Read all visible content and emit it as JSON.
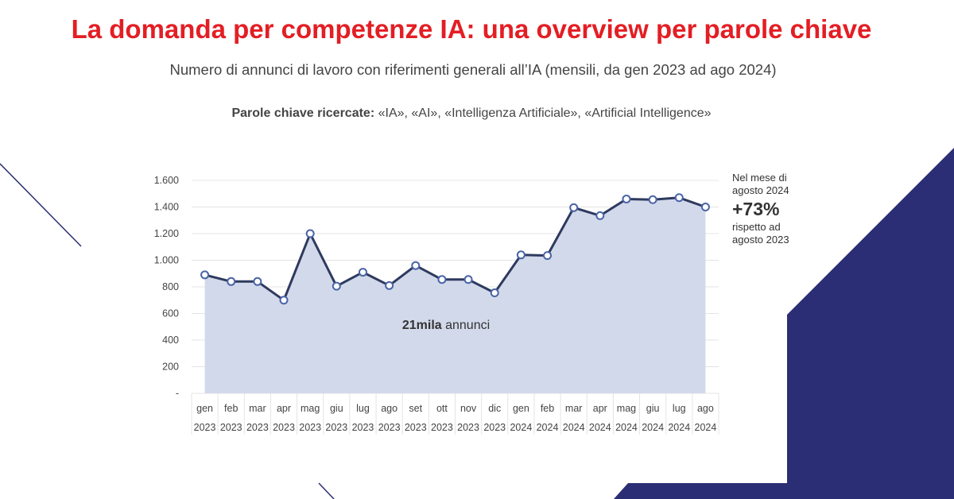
{
  "header": {
    "title": "La domanda per competenze IA: una overview per parole chiave",
    "subtitle": "Numero di annunci di lavoro con riferimenti generali all’IA (mensili, da gen 2023 ad ago 2024)",
    "keywords_label": "Parole chiave ricercate:",
    "keywords_list": " «IA», «AI», «Intelligenza Artificiale», «Artificial Intelligence»"
  },
  "callout": {
    "line1": "Nel mese di",
    "line2": "agosto 2024",
    "value": "+73%",
    "line3": "rispetto ad",
    "line4": "agosto 2023"
  },
  "colors": {
    "title": "#e31e24",
    "line": "#2e3a5f",
    "area": "#d2d9ea",
    "navy": "#2b2e74"
  },
  "chart_data": {
    "type": "area",
    "categories": [
      [
        "gen",
        "2023"
      ],
      [
        "feb",
        "2023"
      ],
      [
        "mar",
        "2023"
      ],
      [
        "apr",
        "2023"
      ],
      [
        "mag",
        "2023"
      ],
      [
        "giu",
        "2023"
      ],
      [
        "lug",
        "2023"
      ],
      [
        "ago",
        "2023"
      ],
      [
        "set",
        "2023"
      ],
      [
        "ott",
        "2023"
      ],
      [
        "nov",
        "2023"
      ],
      [
        "dic",
        "2023"
      ],
      [
        "gen",
        "2024"
      ],
      [
        "feb",
        "2024"
      ],
      [
        "mar",
        "2024"
      ],
      [
        "apr",
        "2024"
      ],
      [
        "mag",
        "2024"
      ],
      [
        "giu",
        "2024"
      ],
      [
        "lug",
        "2024"
      ],
      [
        "ago",
        "2024"
      ]
    ],
    "values": [
      890,
      840,
      840,
      700,
      1200,
      805,
      910,
      810,
      960,
      855,
      855,
      755,
      1040,
      1035,
      1395,
      1335,
      1460,
      1455,
      1470,
      1400
    ],
    "ylim": [
      0,
      1600
    ],
    "yticks": [
      "-",
      "200",
      "400",
      "600",
      "800",
      "1.000",
      "1.200",
      "1.400",
      "1.600"
    ],
    "ytick_values": [
      0,
      200,
      400,
      600,
      800,
      1000,
      1200,
      1400,
      1600
    ],
    "annotation_bold": "21mila",
    "annotation_text": " annunci",
    "grid": true
  }
}
